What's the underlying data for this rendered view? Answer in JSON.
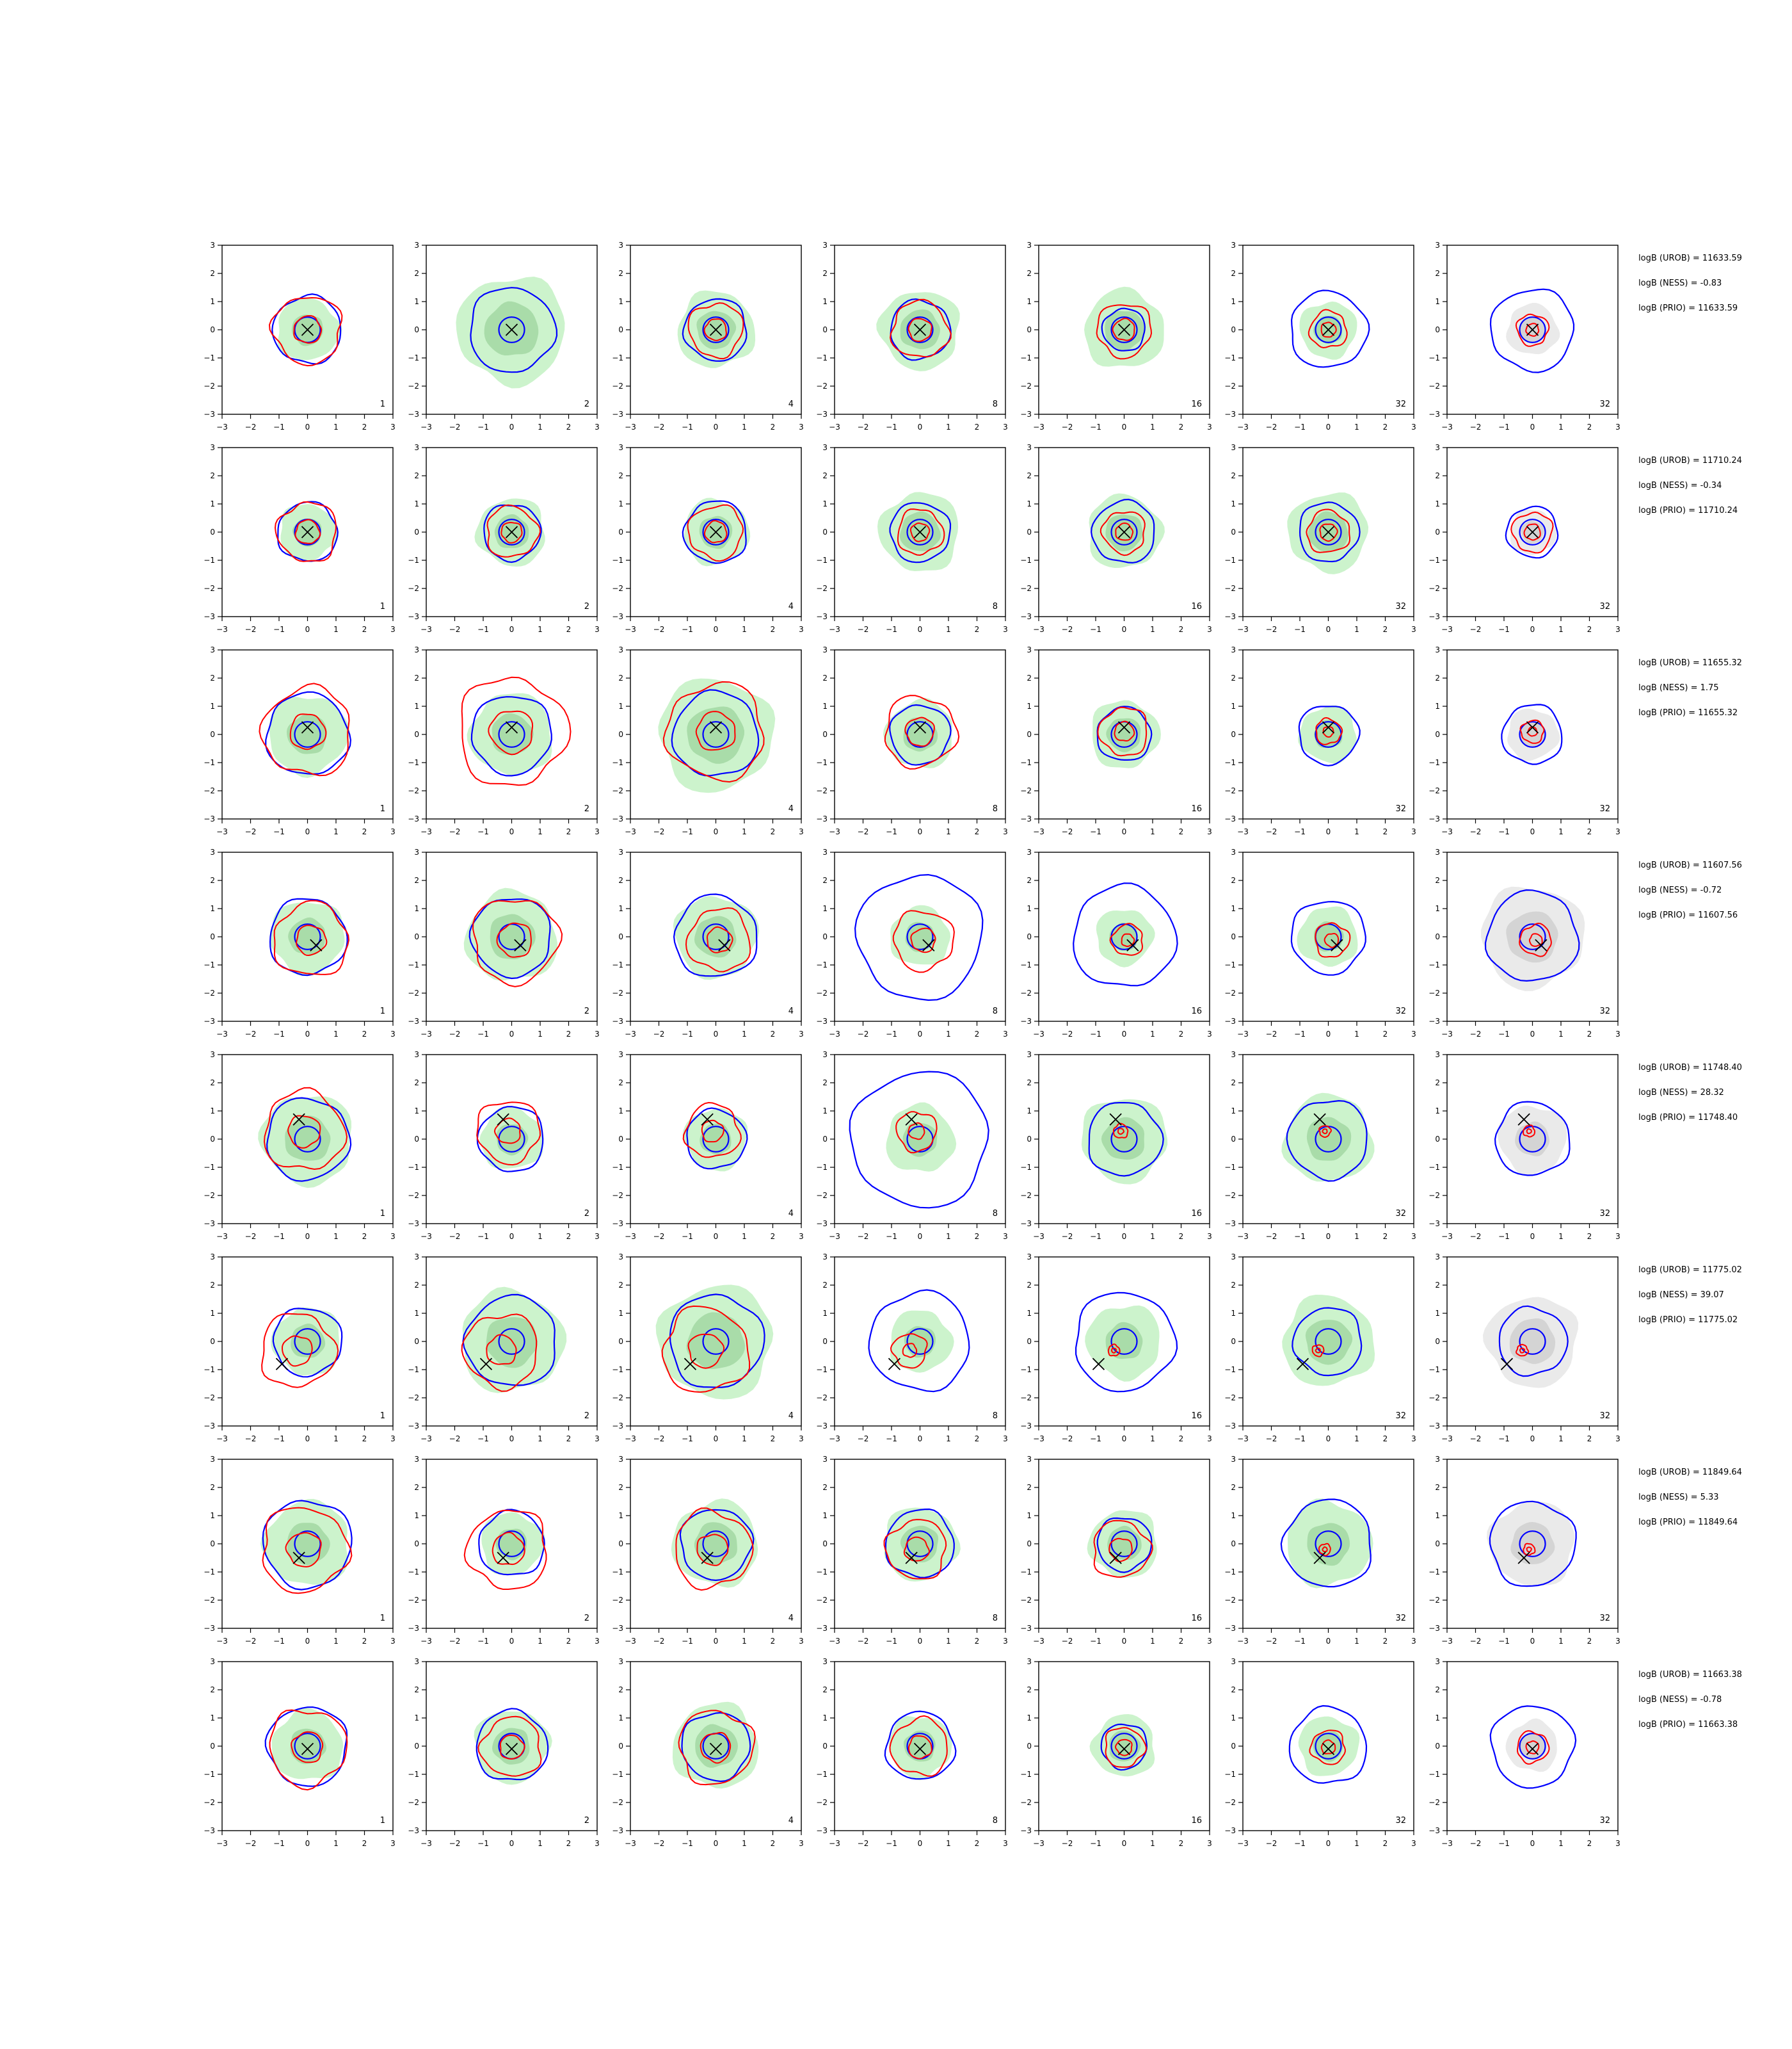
{
  "chart_data": {
    "type": "contour-grid",
    "xlim": [
      -3,
      3
    ],
    "ylim": [
      -3,
      3
    ],
    "xticks": [
      "−3",
      "−2",
      "−1",
      "0",
      "1",
      "2",
      "3"
    ],
    "yticks": [
      "3",
      "2",
      "1",
      "0",
      "−1",
      "−2",
      "−3"
    ],
    "colors": {
      "inner": "#0000ff",
      "outer": "#ff0000",
      "fill": "#ccf3cc",
      "fill_dark": "#a9dca9",
      "prior_fill": "#eaeaea",
      "prior_fill_dark": "#d4d4d4",
      "marker": "#000000"
    },
    "rows": [
      {
        "panels": [
          {
            "label": "1",
            "marker": [
              0,
              0
            ],
            "blue": 1.2,
            "red": 1.2,
            "green": 1.1,
            "prior": false
          },
          {
            "label": "2",
            "marker": [
              0,
              0
            ],
            "blue": 1.5,
            "red": 0,
            "green": 1.9,
            "prior": false
          },
          {
            "label": "4",
            "marker": [
              0,
              0
            ],
            "blue": 1.1,
            "red": 0.95,
            "green": 1.35,
            "prior": false
          },
          {
            "label": "8",
            "marker": [
              0,
              0
            ],
            "blue": 1.05,
            "red": 1.0,
            "green": 1.4,
            "prior": false
          },
          {
            "label": "16",
            "marker": [
              0,
              0
            ],
            "blue": 0.75,
            "red": 0.95,
            "green": 1.4,
            "prior": false
          },
          {
            "label": "32",
            "marker": [
              0,
              0
            ],
            "blue": 1.35,
            "red": 0.65,
            "green": 1.0,
            "prior": false
          },
          {
            "label": "32",
            "marker": [
              0,
              0
            ],
            "blue": 1.45,
            "red": 0.55,
            "green": 0.9,
            "prior": true
          }
        ],
        "stats": {
          "urob": "logB (UROB) = 11633.59",
          "ness": "logB (NESS) = -0.83",
          "prio": "logB (PRIO) = 11633.59"
        }
      },
      {
        "panels": [
          {
            "label": "1",
            "marker": [
              0,
              0
            ],
            "blue": 1.05,
            "red": 1.05,
            "green": 1.0,
            "prior": false
          },
          {
            "label": "2",
            "marker": [
              0,
              0
            ],
            "blue": 1.0,
            "red": 0.9,
            "green": 1.2,
            "prior": false
          },
          {
            "label": "4",
            "marker": [
              0,
              0
            ],
            "blue": 1.1,
            "red": 0.95,
            "green": 1.15,
            "prior": false
          },
          {
            "label": "8",
            "marker": [
              0,
              0
            ],
            "blue": 1.05,
            "red": 0.8,
            "green": 1.4,
            "prior": false
          },
          {
            "label": "16",
            "marker": [
              0,
              0
            ],
            "blue": 1.1,
            "red": 0.75,
            "green": 1.3,
            "prior": false
          },
          {
            "label": "32",
            "marker": [
              0,
              0
            ],
            "blue": 1.05,
            "red": 0.75,
            "green": 1.4,
            "prior": false
          },
          {
            "label": "32",
            "marker": [
              0,
              0
            ],
            "blue": 0.9,
            "red": 0.7,
            "green": 0.8,
            "prior": true
          }
        ],
        "stats": {
          "urob": "logB (UROB) = 11710.24",
          "ness": "logB (NESS) = -0.34",
          "prio": "logB (PRIO) = 11710.24"
        }
      },
      {
        "panels": [
          {
            "label": "1",
            "marker": [
              0,
              0.25
            ],
            "blue": 1.45,
            "red": 1.55,
            "green": 1.4,
            "prior": false
          },
          {
            "label": "2",
            "marker": [
              0,
              0.25
            ],
            "blue": 1.4,
            "red": 1.9,
            "green": 1.45,
            "prior": false
          },
          {
            "label": "4",
            "marker": [
              0,
              0.25
            ],
            "blue": 1.5,
            "red": 1.7,
            "green": 2.0,
            "prior": false
          },
          {
            "label": "8",
            "marker": [
              0,
              0.25
            ],
            "blue": 1.05,
            "red": 1.25,
            "green": 1.2,
            "prior": false
          },
          {
            "label": "16",
            "marker": [
              0,
              0.25
            ],
            "blue": 0.95,
            "red": 0.85,
            "green": 1.2,
            "prior": false
          },
          {
            "label": "32",
            "marker": [
              0,
              0.25
            ],
            "blue": 1.05,
            "red": 0.45,
            "green": 1.0,
            "prior": false
          },
          {
            "label": "32",
            "marker": [
              0,
              0.25
            ],
            "blue": 1.05,
            "red": 0.4,
            "green": 0.9,
            "prior": true
          }
        ],
        "stats": {
          "urob": "logB (UROB) = 11655.32",
          "ness": "logB (NESS) = 1.75",
          "prio": "logB (PRIO) = 11655.32"
        }
      },
      {
        "panels": [
          {
            "label": "1",
            "marker": [
              0.3,
              -0.3
            ],
            "blue": 1.35,
            "red": 1.3,
            "green": 1.3,
            "prior": false
          },
          {
            "label": "2",
            "marker": [
              0.3,
              -0.3
            ],
            "blue": 1.4,
            "red": 1.5,
            "green": 1.6,
            "prior": false
          },
          {
            "label": "4",
            "marker": [
              0.3,
              -0.3
            ],
            "blue": 1.45,
            "red": 1.1,
            "green": 1.45,
            "prior": false
          },
          {
            "label": "8",
            "marker": [
              0.3,
              -0.3
            ],
            "blue": 2.2,
            "red": 1.05,
            "green": 1.05,
            "prior": false
          },
          {
            "label": "16",
            "marker": [
              0.3,
              -0.3
            ],
            "blue": 1.8,
            "red": 0.55,
            "green": 1.0,
            "prior": false
          },
          {
            "label": "32",
            "marker": [
              0.3,
              -0.3
            ],
            "blue": 1.3,
            "red": 0.6,
            "green": 1.05,
            "prior": false
          },
          {
            "label": "32",
            "marker": [
              0.3,
              -0.3
            ],
            "blue": 1.6,
            "red": 0.55,
            "green": 1.8,
            "prior": true
          }
        ],
        "stats": {
          "urob": "logB (UROB) = 11607.56",
          "ness": "logB (NESS) = -0.72",
          "prio": "logB (PRIO) = 11607.56"
        }
      },
      {
        "panels": [
          {
            "label": "1",
            "marker": [
              -0.3,
              0.7
            ],
            "blue": 1.45,
            "red": 1.4,
            "green": 1.6,
            "prior": false
          },
          {
            "label": "2",
            "marker": [
              -0.3,
              0.7
            ],
            "blue": 1.15,
            "red": 1.1,
            "green": 1.1,
            "prior": false
          },
          {
            "label": "4",
            "marker": [
              -0.3,
              0.7
            ],
            "blue": 1.05,
            "red": 0.95,
            "green": 1.1,
            "prior": false
          },
          {
            "label": "8",
            "marker": [
              -0.3,
              0.7
            ],
            "blue": 2.4,
            "red": 0.7,
            "green": 1.2,
            "prior": false
          },
          {
            "label": "16",
            "marker": [
              -0.3,
              0.7
            ],
            "blue": 1.3,
            "red": 0.25,
            "green": 1.5,
            "prior": false
          },
          {
            "label": "32",
            "marker": [
              -0.3,
              0.7
            ],
            "blue": 1.4,
            "red": 0.2,
            "green": 1.55,
            "prior": false
          },
          {
            "label": "32",
            "marker": [
              -0.3,
              0.7
            ],
            "blue": 1.3,
            "red": 0.2,
            "green": 1.2,
            "prior": true
          }
        ],
        "stats": {
          "urob": "logB (UROB) = 11748.40",
          "ness": "logB (NESS) = 28.32",
          "prio": "logB (PRIO) = 11748.40"
        }
      },
      {
        "panels": [
          {
            "label": "1",
            "marker": [
              -0.9,
              -0.8
            ],
            "blue": 1.2,
            "red": 1.3,
            "green": 1.2,
            "prior": false
          },
          {
            "label": "2",
            "marker": [
              -0.9,
              -0.8
            ],
            "blue": 1.6,
            "red": 1.3,
            "green": 1.8,
            "prior": false
          },
          {
            "label": "4",
            "marker": [
              -0.9,
              -0.8
            ],
            "blue": 1.65,
            "red": 1.5,
            "green": 2.0,
            "prior": false
          },
          {
            "label": "8",
            "marker": [
              -0.9,
              -0.8
            ],
            "blue": 1.75,
            "red": 0.6,
            "green": 1.1,
            "prior": false
          },
          {
            "label": "16",
            "marker": [
              -0.9,
              -0.8
            ],
            "blue": 1.75,
            "red": 0.2,
            "green": 1.3,
            "prior": false
          },
          {
            "label": "32",
            "marker": [
              -0.9,
              -0.8
            ],
            "blue": 1.2,
            "red": 0.2,
            "green": 1.6,
            "prior": false
          },
          {
            "label": "32",
            "marker": [
              -0.9,
              -0.8
            ],
            "blue": 1.2,
            "red": 0.2,
            "green": 1.6,
            "prior": true
          }
        ],
        "stats": {
          "urob": "logB (UROB) = 11775.02",
          "ness": "logB (NESS) = 39.07",
          "prio": "logB (PRIO) = 11775.02"
        }
      },
      {
        "panels": [
          {
            "label": "1",
            "marker": [
              -0.3,
              -0.5
            ],
            "blue": 1.55,
            "red": 1.5,
            "green": 1.5,
            "prior": false
          },
          {
            "label": "2",
            "marker": [
              -0.3,
              -0.5
            ],
            "blue": 1.15,
            "red": 1.4,
            "green": 1.1,
            "prior": false
          },
          {
            "label": "4",
            "marker": [
              -0.3,
              -0.5
            ],
            "blue": 1.25,
            "red": 1.35,
            "green": 1.5,
            "prior": false
          },
          {
            "label": "8",
            "marker": [
              -0.3,
              -0.5
            ],
            "blue": 1.2,
            "red": 1.05,
            "green": 1.3,
            "prior": false
          },
          {
            "label": "16",
            "marker": [
              -0.3,
              -0.5
            ],
            "blue": 0.95,
            "red": 1.0,
            "green": 1.2,
            "prior": false
          },
          {
            "label": "32",
            "marker": [
              -0.3,
              -0.5
            ],
            "blue": 1.55,
            "red": 0.2,
            "green": 1.5,
            "prior": false
          },
          {
            "label": "32",
            "marker": [
              -0.3,
              -0.5
            ],
            "blue": 1.5,
            "red": 0.2,
            "green": 1.5,
            "prior": true
          }
        ],
        "stats": {
          "urob": "logB (UROB) = 11849.64",
          "ness": "logB (NESS) = 5.33",
          "prio": "logB (PRIO) = 11849.64"
        }
      },
      {
        "panels": [
          {
            "label": "1",
            "marker": [
              0,
              -0.1
            ],
            "blue": 1.4,
            "red": 1.35,
            "green": 1.25,
            "prior": false
          },
          {
            "label": "2",
            "marker": [
              0,
              -0.1
            ],
            "blue": 1.25,
            "red": 1.05,
            "green": 1.3,
            "prior": false
          },
          {
            "label": "4",
            "marker": [
              0,
              -0.1
            ],
            "blue": 1.2,
            "red": 1.3,
            "green": 1.5,
            "prior": false
          },
          {
            "label": "8",
            "marker": [
              0,
              -0.1
            ],
            "blue": 1.2,
            "red": 1.0,
            "green": 1.1,
            "prior": false
          },
          {
            "label": "16",
            "marker": [
              0,
              -0.1
            ],
            "blue": 0.8,
            "red": 0.7,
            "green": 1.1,
            "prior": false
          },
          {
            "label": "32",
            "marker": [
              0,
              -0.1
            ],
            "blue": 1.35,
            "red": 0.6,
            "green": 1.05,
            "prior": false
          },
          {
            "label": "32",
            "marker": [
              0,
              -0.1
            ],
            "blue": 1.45,
            "red": 0.55,
            "green": 0.9,
            "prior": true
          }
        ],
        "stats": {
          "urob": "logB (UROB) = 11663.38",
          "ness": "logB (NESS) = -0.78",
          "prio": "logB (PRIO) = 11663.38"
        }
      }
    ]
  }
}
